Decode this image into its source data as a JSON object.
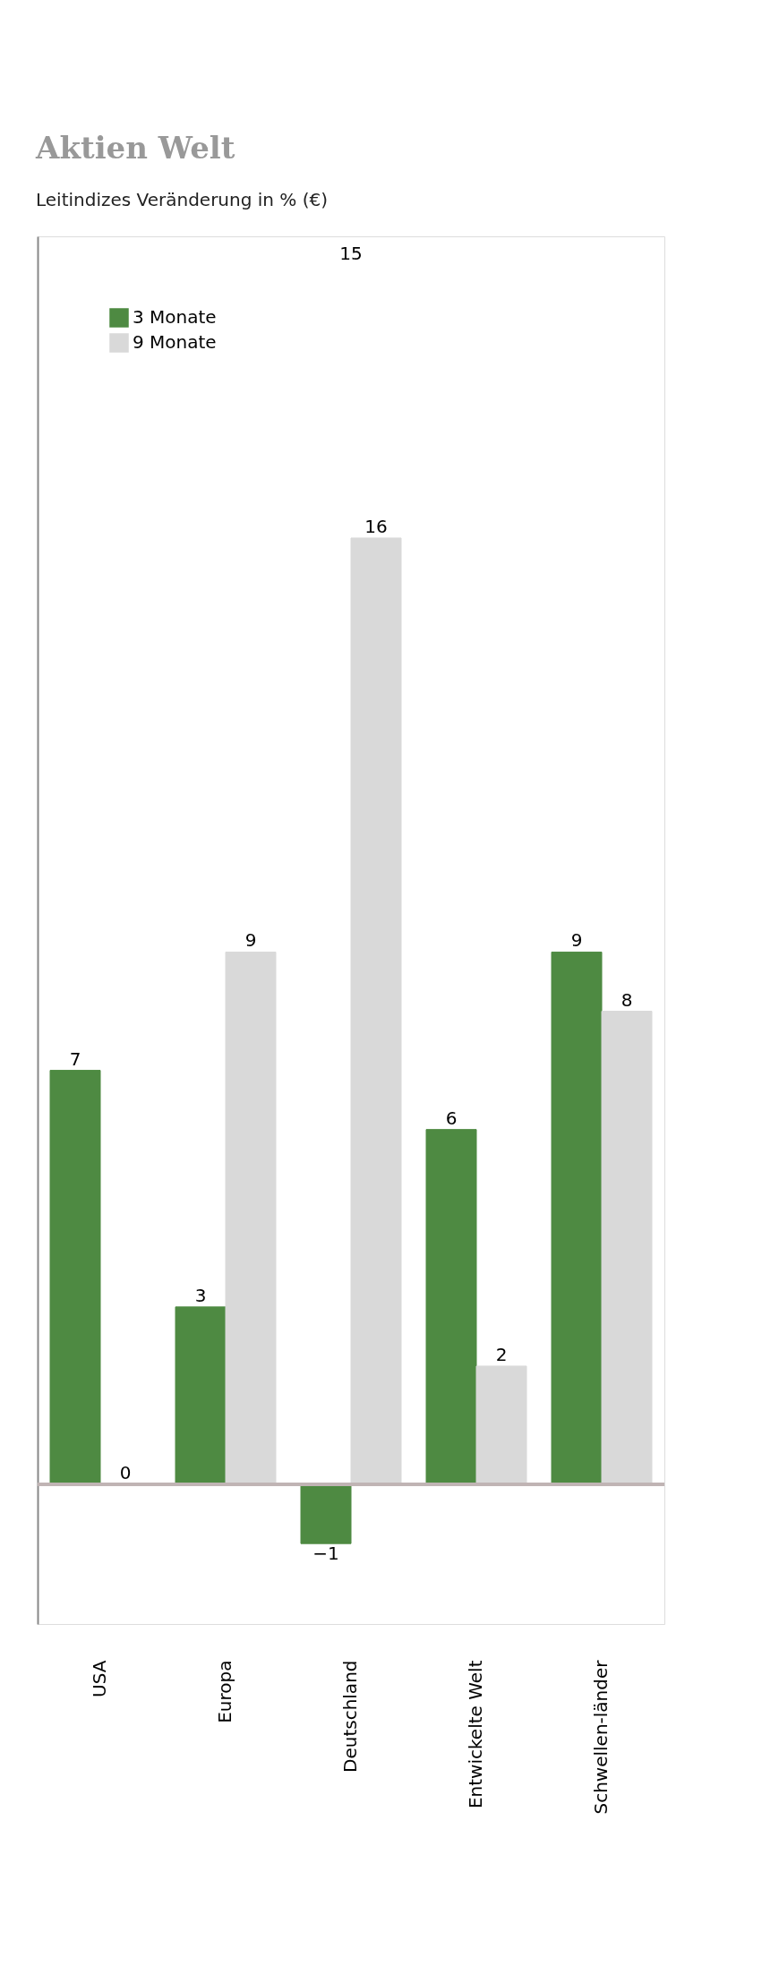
{
  "chart_data": {
    "type": "bar",
    "title": "Aktien Welt",
    "subtitle": "Leitindizes Veränderung in % (€)",
    "categories": [
      "USA",
      "Europa",
      "Deutschland",
      "Entwickelte Welt",
      "Schwellen-länder"
    ],
    "series": [
      {
        "name": "3 Monate",
        "color": "#4e8a42",
        "values": [
          7,
          3,
          -1,
          6,
          9
        ]
      },
      {
        "name": "9 Monate",
        "color": "#d9d9d9",
        "values": [
          0,
          9,
          16,
          2,
          8
        ]
      }
    ],
    "annotations": [
      "15"
    ],
    "data_labels": true,
    "legend": "top left",
    "grid": false
  }
}
